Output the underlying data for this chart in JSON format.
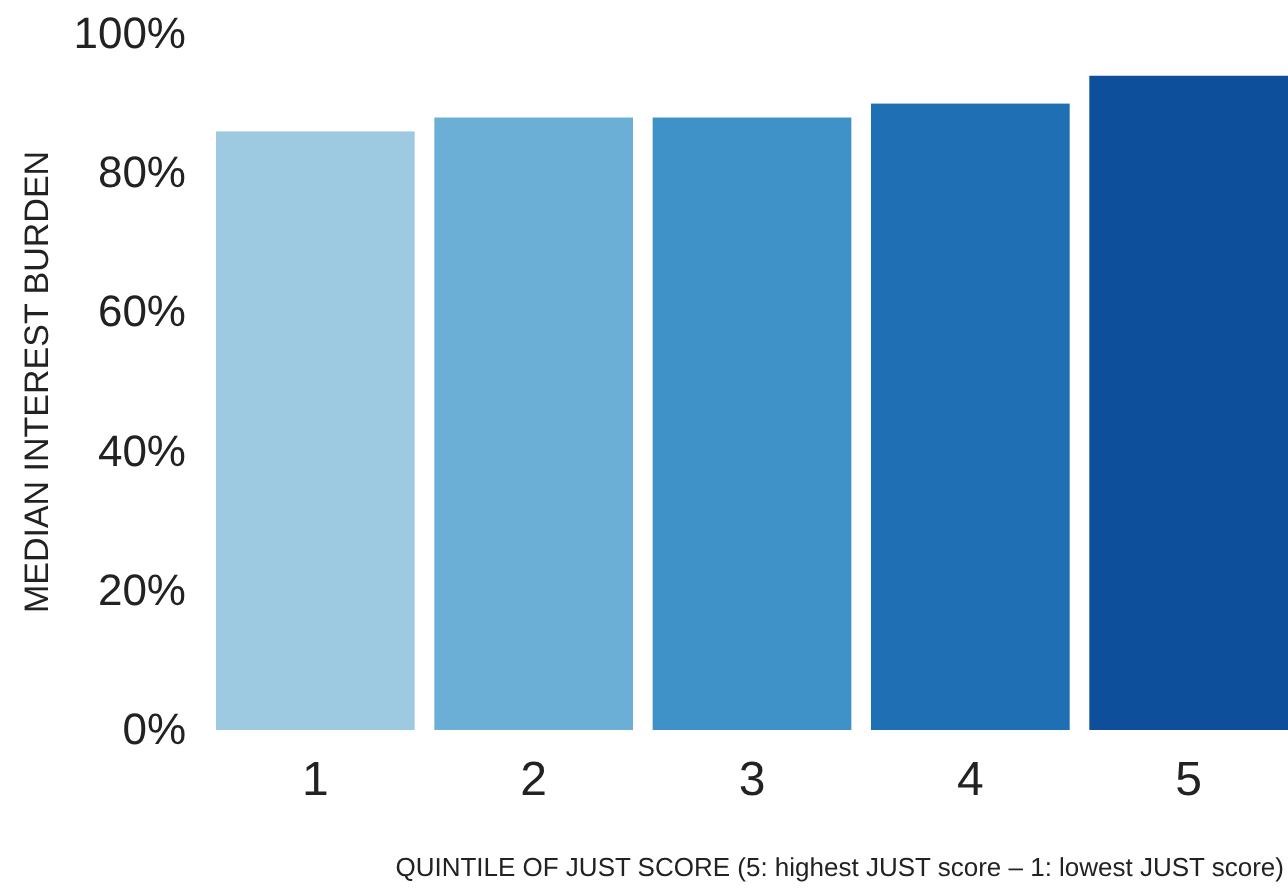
{
  "chart_data": {
    "type": "bar",
    "xlabel": "QUINTILE OF JUST SCORE (5: highest JUST score – 1: lowest JUST score)",
    "ylabel": "MEDIAN INTEREST BURDEN",
    "categories": [
      "1",
      "2",
      "3",
      "4",
      "5"
    ],
    "values": [
      86,
      88,
      88,
      90,
      94
    ],
    "colors": [
      "#9ecae1",
      "#6baed6",
      "#3f92c8",
      "#1f6fb5",
      "#0d4f9b"
    ],
    "ylim": [
      0,
      100
    ],
    "yticks": [
      {
        "value": 0,
        "label": "0%"
      },
      {
        "value": 20,
        "label": "20%"
      },
      {
        "value": 40,
        "label": "40%"
      },
      {
        "value": 60,
        "label": "60%"
      },
      {
        "value": 80,
        "label": "80%"
      },
      {
        "value": 100,
        "label": "100%"
      }
    ]
  }
}
